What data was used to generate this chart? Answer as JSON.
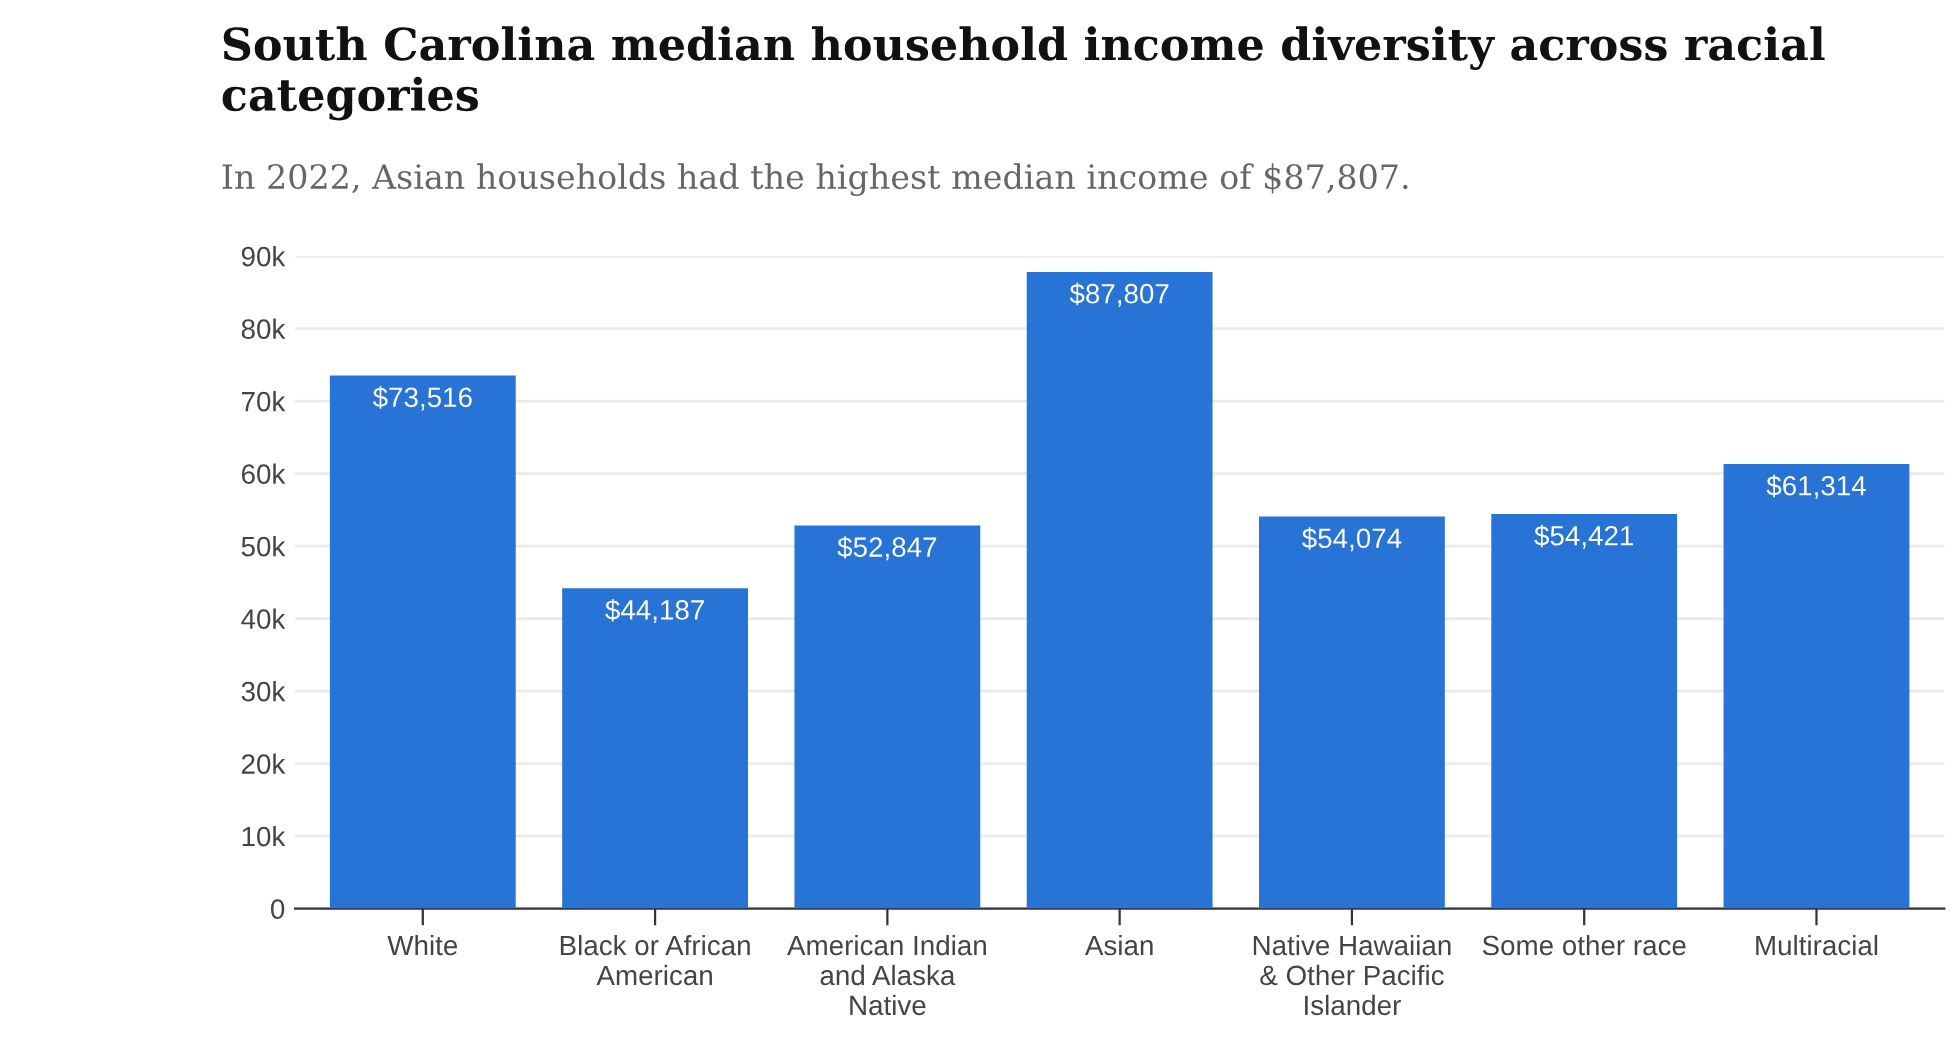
{
  "chart_data": {
    "type": "bar",
    "title": "South Carolina median household income diversity across racial categories",
    "subtitle": "In 2022, Asian households had the highest median income of $87,807.",
    "categories": [
      "White",
      "Black or African American",
      "American Indian and Alaska Native",
      "Asian",
      "Native Hawaiian & Other Pacific Islander",
      "Some other race",
      "Multiracial"
    ],
    "values": [
      73516,
      44187,
      52847,
      87807,
      54074,
      54421,
      61314
    ],
    "value_labels": [
      "$73,516",
      "$44,187",
      "$52,847",
      "$87,807",
      "$54,074",
      "$54,421",
      "$61,314"
    ],
    "color": "#2873d6",
    "ylim": [
      0,
      90000
    ],
    "yticks": [
      0,
      {
        "value": 10000,
        "label": "10k"
      },
      {
        "value": 20000,
        "label": "20k"
      },
      {
        "value": 30000,
        "label": "30k"
      },
      {
        "value": 40000,
        "label": "40k"
      },
      {
        "value": 50000,
        "label": "50k"
      },
      {
        "value": 60000,
        "label": "60k"
      },
      {
        "value": 70000,
        "label": "70k"
      },
      {
        "value": 80000,
        "label": "80k"
      },
      {
        "value": 90000,
        "label": "90k"
      }
    ],
    "grid": "y",
    "legend": false
  }
}
